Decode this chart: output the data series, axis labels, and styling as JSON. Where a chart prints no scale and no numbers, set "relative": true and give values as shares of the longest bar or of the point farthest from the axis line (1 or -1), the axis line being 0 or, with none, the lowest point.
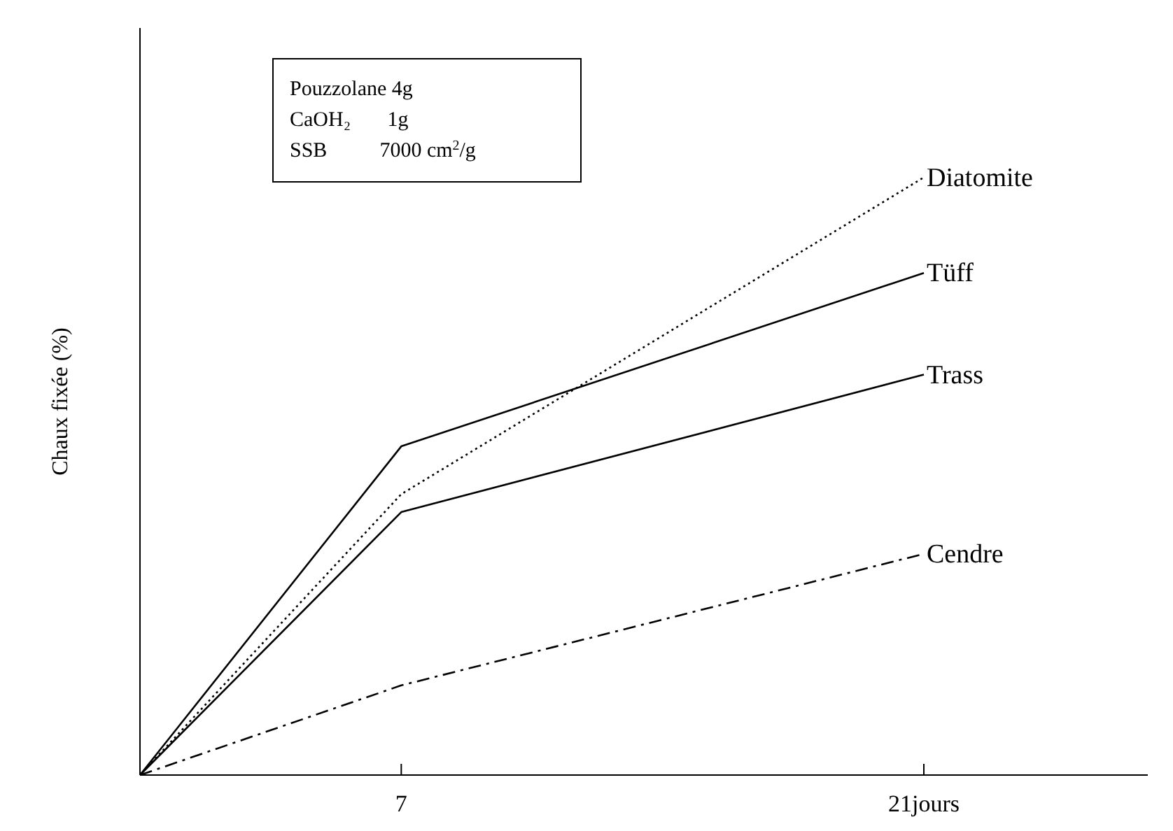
{
  "chart_data": {
    "type": "line",
    "relative": true,
    "ylabel": "Chaux fixée (%)",
    "x": [
      0,
      7,
      21
    ],
    "xlim": [
      0,
      27
    ],
    "xticks": [
      7,
      {
        "value": 21,
        "label": "21jours"
      }
    ],
    "grid": false,
    "legend": false,
    "marker": "none",
    "series": [
      {
        "name": "Diatomite",
        "color": "#000000",
        "line_style": "dotted",
        "values": [
          0,
          0.47,
          1
        ]
      },
      {
        "name": "Tüff",
        "color": "#000000",
        "line_style": "solid",
        "values": [
          0,
          0.55,
          0.84
        ]
      },
      {
        "name": "Trass",
        "color": "#000000",
        "line_style": "solid",
        "values": [
          0,
          0.44,
          0.67
        ]
      },
      {
        "name": "Cendre",
        "color": "#000000",
        "line_style": "dashed",
        "values": [
          0,
          0.15,
          0.37
        ]
      }
    ],
    "annotations": [
      "Pouzzolane 4g",
      "CaOH₂       1g",
      "SSB          7000 cm$^{2}$/g"
    ]
  }
}
